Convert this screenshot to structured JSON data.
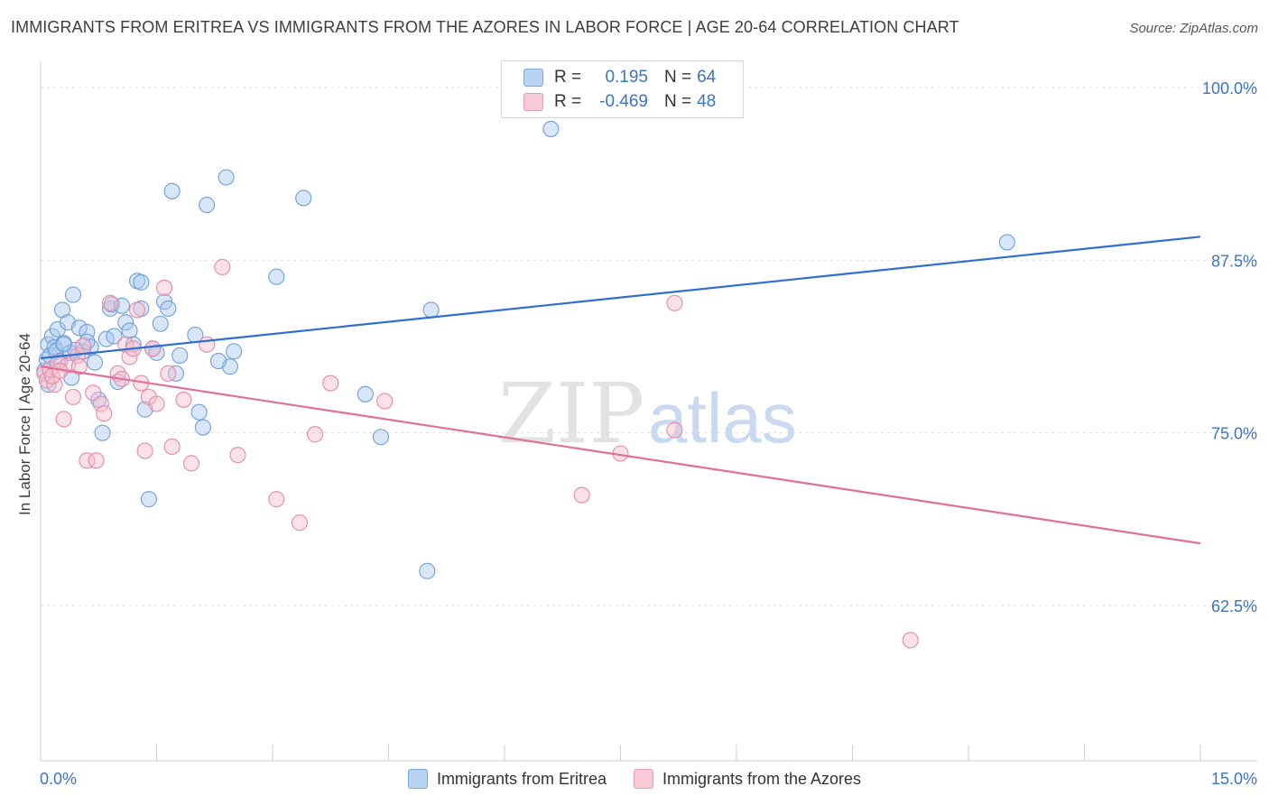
{
  "title": "IMMIGRANTS FROM ERITREA VS IMMIGRANTS FROM THE AZORES IN LABOR FORCE | AGE 20-64 CORRELATION CHART",
  "source": "Source: ZipAtlas.com",
  "watermark": {
    "zip": "ZIP",
    "atlas": "atlas"
  },
  "colors": {
    "blue_fill": "#a9c8ef",
    "blue_stroke": "#6f9fd9",
    "blue_line": "#2e6fcf",
    "pink_fill": "#f6bccd",
    "pink_stroke": "#e58aa7",
    "pink_line": "#e0709a",
    "tick_label": "#3b73c8",
    "grid": "#dddddd"
  },
  "legend": {
    "rows": [
      {
        "r_label": "R =",
        "r_value": "0.195",
        "n_label": "N =",
        "n_value": "64"
      },
      {
        "r_label": "R =",
        "r_value": "-0.469",
        "n_label": "N =",
        "n_value": "48"
      }
    ]
  },
  "chart_data": {
    "type": "scatter",
    "title": "IMMIGRANTS FROM ERITREA VS IMMIGRANTS FROM THE AZORES IN LABOR FORCE | AGE 20-64 CORRELATION CHART",
    "xlabel": "",
    "ylabel": "In Labor Force | Age 20-64",
    "xlim": [
      0,
      15
    ],
    "ylim": [
      50,
      100
    ],
    "x_tick_labels": [
      "0.0%",
      "15.0%"
    ],
    "y_ticks": [
      62.5,
      75.0,
      87.5,
      100.0
    ],
    "y_tick_labels": [
      "62.5%",
      "75.0%",
      "87.5%",
      "100.0%"
    ],
    "series": [
      {
        "name": "Immigrants from Eritrea",
        "color": "#a9c8ef",
        "r": 0.195,
        "n": 64,
        "trend": {
          "x": [
            0,
            15
          ],
          "y": [
            80.4,
            89.2
          ]
        },
        "points": [
          [
            0.05,
            79.5
          ],
          [
            0.08,
            80.3
          ],
          [
            0.1,
            81.4
          ],
          [
            0.12,
            80.6
          ],
          [
            0.15,
            82.0
          ],
          [
            0.18,
            81.2
          ],
          [
            0.2,
            80.9
          ],
          [
            0.22,
            82.5
          ],
          [
            0.25,
            80.2
          ],
          [
            0.28,
            83.9
          ],
          [
            0.3,
            81.5
          ],
          [
            0.35,
            83.0
          ],
          [
            0.38,
            80.8
          ],
          [
            0.42,
            85.0
          ],
          [
            0.45,
            81.0
          ],
          [
            0.5,
            82.6
          ],
          [
            0.55,
            80.9
          ],
          [
            0.6,
            82.3
          ],
          [
            0.65,
            81.2
          ],
          [
            0.7,
            80.1
          ],
          [
            0.75,
            77.4
          ],
          [
            0.8,
            75.0
          ],
          [
            0.85,
            81.8
          ],
          [
            0.9,
            84.0
          ],
          [
            0.92,
            84.3
          ],
          [
            0.95,
            82.0
          ],
          [
            1.0,
            78.7
          ],
          [
            1.05,
            84.2
          ],
          [
            1.1,
            83.0
          ],
          [
            1.15,
            82.4
          ],
          [
            1.2,
            81.4
          ],
          [
            1.25,
            86.0
          ],
          [
            1.3,
            85.9
          ],
          [
            1.35,
            76.7
          ],
          [
            1.4,
            70.2
          ],
          [
            1.45,
            81.1
          ],
          [
            1.5,
            80.8
          ],
          [
            1.55,
            82.9
          ],
          [
            1.6,
            84.5
          ],
          [
            1.65,
            84.0
          ],
          [
            1.7,
            92.5
          ],
          [
            1.75,
            79.3
          ],
          [
            1.8,
            80.6
          ],
          [
            2.0,
            82.1
          ],
          [
            2.05,
            76.5
          ],
          [
            2.1,
            75.4
          ],
          [
            2.15,
            91.5
          ],
          [
            2.4,
            93.5
          ],
          [
            2.45,
            79.8
          ],
          [
            2.5,
            80.9
          ],
          [
            3.05,
            86.3
          ],
          [
            3.4,
            92.0
          ],
          [
            4.2,
            77.8
          ],
          [
            4.4,
            74.7
          ],
          [
            5.05,
            83.9
          ],
          [
            5.0,
            65.0
          ],
          [
            6.6,
            97.0
          ],
          [
            12.5,
            88.8
          ],
          [
            0.4,
            79.0
          ],
          [
            0.1,
            78.5
          ],
          [
            0.6,
            81.6
          ],
          [
            0.3,
            81.4
          ],
          [
            1.3,
            84.0
          ],
          [
            2.3,
            80.2
          ]
        ]
      },
      {
        "name": "Immigrants from the Azores",
        "color": "#f6bccd",
        "r": -0.469,
        "n": 48,
        "trend": {
          "x": [
            0,
            15
          ],
          "y": [
            79.8,
            67.0
          ]
        },
        "points": [
          [
            0.05,
            79.3
          ],
          [
            0.08,
            78.8
          ],
          [
            0.12,
            79.6
          ],
          [
            0.18,
            78.5
          ],
          [
            0.22,
            80.1
          ],
          [
            0.3,
            76.0
          ],
          [
            0.35,
            79.9
          ],
          [
            0.42,
            77.6
          ],
          [
            0.48,
            80.6
          ],
          [
            0.55,
            81.3
          ],
          [
            0.6,
            73.0
          ],
          [
            0.68,
            77.9
          ],
          [
            0.72,
            73.0
          ],
          [
            0.78,
            77.1
          ],
          [
            0.82,
            76.4
          ],
          [
            0.9,
            84.4
          ],
          [
            1.0,
            79.3
          ],
          [
            1.05,
            78.9
          ],
          [
            1.1,
            81.4
          ],
          [
            1.15,
            80.5
          ],
          [
            1.2,
            81.1
          ],
          [
            1.25,
            83.9
          ],
          [
            1.3,
            78.6
          ],
          [
            1.35,
            73.7
          ],
          [
            1.4,
            77.6
          ],
          [
            1.45,
            81.1
          ],
          [
            1.5,
            77.1
          ],
          [
            1.6,
            85.5
          ],
          [
            1.65,
            79.3
          ],
          [
            1.7,
            74.0
          ],
          [
            1.85,
            77.4
          ],
          [
            1.95,
            72.8
          ],
          [
            2.15,
            81.4
          ],
          [
            2.35,
            87.0
          ],
          [
            2.55,
            73.4
          ],
          [
            3.05,
            70.2
          ],
          [
            3.35,
            68.5
          ],
          [
            3.55,
            74.9
          ],
          [
            3.75,
            78.6
          ],
          [
            4.45,
            77.3
          ],
          [
            7.0,
            70.5
          ],
          [
            7.5,
            73.5
          ],
          [
            8.2,
            75.2
          ],
          [
            8.2,
            84.4
          ],
          [
            11.25,
            60.0
          ],
          [
            0.15,
            79.1
          ],
          [
            0.25,
            79.5
          ],
          [
            0.5,
            79.8
          ]
        ]
      }
    ]
  }
}
